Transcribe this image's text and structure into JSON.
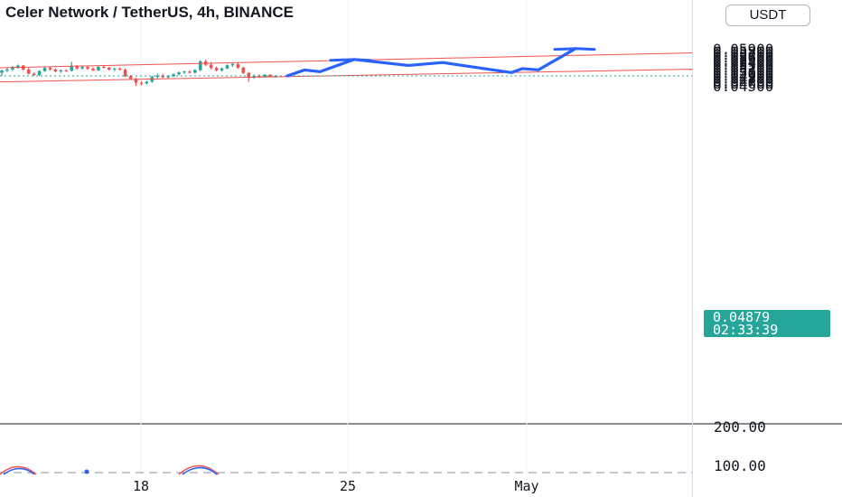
{
  "header": {
    "title": "Celer Network / TetherUS, 4h, BINANCE"
  },
  "currency_button": {
    "label": "USDT"
  },
  "last_price": {
    "price": "0.04879",
    "countdown": "02:33:39",
    "color": "#26a69a"
  },
  "colors": {
    "up": "#26a69a",
    "down": "#ef5350",
    "channel": "#ef5350",
    "projection": "#2962ff"
  },
  "chart_data": {
    "type": "candlestick",
    "y_ticks": [
      "0.05900",
      "0.05800",
      "0.05700",
      "0.05600",
      "0.05500",
      "0.05400",
      "0.05300",
      "0.05200",
      "0.05100",
      "0.05000",
      "0.04900",
      "0.04800",
      "0.04700",
      "0.04600",
      "0.04500"
    ],
    "ylim": [
      0.045,
      0.0596
    ],
    "x_ticks": [
      "18",
      "25",
      "May"
    ],
    "indicator_ticks": [
      "200.00",
      "100.00"
    ],
    "last_price": 0.04879,
    "candles": [
      [
        0.05,
        0.0512,
        0.0488,
        0.0508
      ],
      [
        0.0508,
        0.0519,
        0.0502,
        0.0512
      ],
      [
        0.0512,
        0.0525,
        0.0507,
        0.0521
      ],
      [
        0.0521,
        0.0531,
        0.0515,
        0.0527
      ],
      [
        0.0527,
        0.0529,
        0.0508,
        0.0512
      ],
      [
        0.0512,
        0.0518,
        0.0494,
        0.0496
      ],
      [
        0.0496,
        0.0502,
        0.0488,
        0.0491
      ],
      [
        0.0491,
        0.0509,
        0.0487,
        0.0506
      ],
      [
        0.0506,
        0.0523,
        0.0503,
        0.0518
      ],
      [
        0.0518,
        0.0522,
        0.0508,
        0.0512
      ],
      [
        0.0512,
        0.0516,
        0.0501,
        0.0505
      ],
      [
        0.0505,
        0.0512,
        0.0499,
        0.0509
      ],
      [
        0.0509,
        0.0513,
        0.0503,
        0.0507
      ],
      [
        0.0507,
        0.0541,
        0.0505,
        0.0526
      ],
      [
        0.0526,
        0.0529,
        0.0512,
        0.0516
      ],
      [
        0.0516,
        0.0528,
        0.0512,
        0.0521
      ],
      [
        0.0521,
        0.0525,
        0.0511,
        0.0515
      ],
      [
        0.0515,
        0.0521,
        0.0506,
        0.0509
      ],
      [
        0.0509,
        0.0525,
        0.0506,
        0.0522
      ],
      [
        0.0522,
        0.0529,
        0.0516,
        0.0519
      ],
      [
        0.0519,
        0.0522,
        0.0508,
        0.0512
      ],
      [
        0.0512,
        0.0519,
        0.0506,
        0.0515
      ],
      [
        0.0515,
        0.052,
        0.0509,
        0.0511
      ],
      [
        0.0511,
        0.0516,
        0.0484,
        0.0486
      ],
      [
        0.0486,
        0.0491,
        0.0473,
        0.0477
      ],
      [
        0.0477,
        0.0482,
        0.045,
        0.0462
      ],
      [
        0.0462,
        0.0468,
        0.0452,
        0.046
      ],
      [
        0.046,
        0.047,
        0.0455,
        0.0466
      ],
      [
        0.0466,
        0.0488,
        0.0463,
        0.0484
      ],
      [
        0.0484,
        0.0497,
        0.0479,
        0.0489
      ],
      [
        0.0489,
        0.0496,
        0.048,
        0.0483
      ],
      [
        0.0483,
        0.0491,
        0.0478,
        0.0487
      ],
      [
        0.0487,
        0.0497,
        0.0483,
        0.0494
      ],
      [
        0.0494,
        0.0505,
        0.049,
        0.0501
      ],
      [
        0.0501,
        0.0508,
        0.0496,
        0.0504
      ],
      [
        0.0504,
        0.0509,
        0.0497,
        0.05
      ],
      [
        0.05,
        0.0513,
        0.0497,
        0.051
      ],
      [
        0.051,
        0.0547,
        0.0506,
        0.0543
      ],
      [
        0.0543,
        0.0549,
        0.0525,
        0.053
      ],
      [
        0.053,
        0.054,
        0.0512,
        0.0518
      ],
      [
        0.0518,
        0.0523,
        0.0505,
        0.0509
      ],
      [
        0.0509,
        0.052,
        0.0504,
        0.0516
      ],
      [
        0.0516,
        0.0531,
        0.0513,
        0.0528
      ],
      [
        0.0528,
        0.0539,
        0.0522,
        0.0532
      ],
      [
        0.0532,
        0.054,
        0.0515,
        0.0519
      ],
      [
        0.0519,
        0.0523,
        0.0495,
        0.0499
      ],
      [
        0.0499,
        0.0503,
        0.0466,
        0.0481
      ],
      [
        0.0481,
        0.0493,
        0.0477,
        0.0488
      ],
      [
        0.0488,
        0.0494,
        0.048,
        0.0485
      ],
      [
        0.0485,
        0.0495,
        0.0481,
        0.0492
      ],
      [
        0.0492,
        0.0495,
        0.0482,
        0.0486
      ],
      [
        0.0486,
        0.0491,
        0.0481,
        0.0488
      ]
    ],
    "channel_upper": [
      [
        "start",
        0.05185
      ],
      [
        "end",
        0.05747
      ]
    ],
    "channel_lower": [
      [
        "start",
        0.04656
      ],
      [
        "end",
        0.05132
      ]
    ],
    "projection_path": [
      0.04879,
      0.05103,
      0.05038,
      0.05498,
      0.05383,
      0.05272,
      0.05398,
      0.05005,
      0.05153,
      0.05107,
      0.05907
    ],
    "horizontal_line": 0.045
  }
}
